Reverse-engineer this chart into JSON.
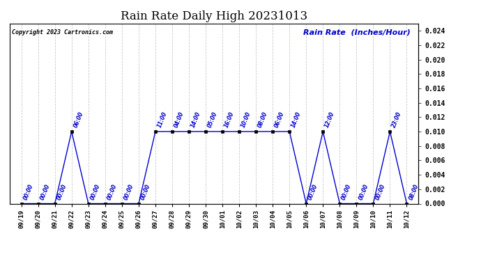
{
  "title": "Rain Rate Daily High 20231013",
  "copyright": "Copyright 2023 Cartronics.com",
  "ylabel_right": "Rain Rate  (Inches/Hour)",
  "ylim": [
    0.0,
    0.025
  ],
  "yticks": [
    0.0,
    0.002,
    0.004,
    0.006,
    0.008,
    0.01,
    0.012,
    0.014,
    0.016,
    0.018,
    0.02,
    0.022,
    0.024
  ],
  "background_color": "#ffffff",
  "grid_color": "#bbbbbb",
  "line_color": "#0000cc",
  "annotation_color": "#0000cc",
  "x_labels": [
    "09/19",
    "09/20",
    "09/21",
    "09/22",
    "09/23",
    "09/24",
    "09/25",
    "09/26",
    "09/27",
    "09/28",
    "09/29",
    "09/30",
    "10/01",
    "10/02",
    "10/03",
    "10/04",
    "10/05",
    "10/06",
    "10/07",
    "10/08",
    "10/09",
    "10/10",
    "10/11",
    "10/12"
  ],
  "y_values": [
    0.0,
    0.0,
    0.0,
    0.01,
    0.0,
    0.0,
    0.0,
    0.0,
    0.01,
    0.01,
    0.01,
    0.01,
    0.01,
    0.01,
    0.01,
    0.01,
    0.01,
    0.0,
    0.01,
    0.0,
    0.0,
    0.0,
    0.01,
    0.0
  ],
  "annotations": [
    {
      "idx": 0,
      "label": "00:00"
    },
    {
      "idx": 1,
      "label": "00:00"
    },
    {
      "idx": 2,
      "label": "00:00"
    },
    {
      "idx": 3,
      "label": "06:00"
    },
    {
      "idx": 4,
      "label": "00:00"
    },
    {
      "idx": 5,
      "label": "00:00"
    },
    {
      "idx": 6,
      "label": "00:00"
    },
    {
      "idx": 7,
      "label": "00:00"
    },
    {
      "idx": 8,
      "label": "11:00"
    },
    {
      "idx": 9,
      "label": "04:00"
    },
    {
      "idx": 10,
      "label": "14:00"
    },
    {
      "idx": 11,
      "label": "05:00"
    },
    {
      "idx": 12,
      "label": "16:00"
    },
    {
      "idx": 13,
      "label": "10:00"
    },
    {
      "idx": 14,
      "label": "08:00"
    },
    {
      "idx": 15,
      "label": "06:00"
    },
    {
      "idx": 16,
      "label": "14:00"
    },
    {
      "idx": 17,
      "label": "00:00"
    },
    {
      "idx": 18,
      "label": "12:00"
    },
    {
      "idx": 19,
      "label": "00:00"
    },
    {
      "idx": 20,
      "label": "00:00"
    },
    {
      "idx": 21,
      "label": "00:00"
    },
    {
      "idx": 22,
      "label": "23:00"
    },
    {
      "idx": 23,
      "label": "08:00"
    }
  ]
}
